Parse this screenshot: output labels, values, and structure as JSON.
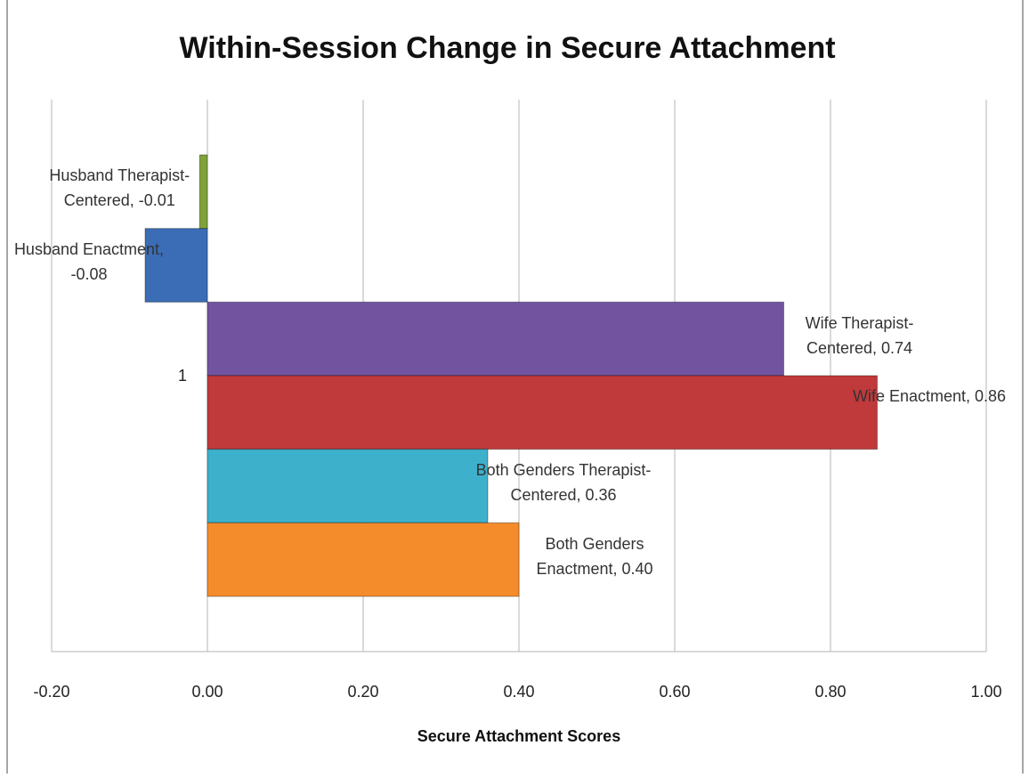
{
  "chart_data": {
    "type": "bar",
    "orientation": "horizontal",
    "title": "Within-Session Change in Secure Attachment",
    "xlabel": "Secure Attachment Scores",
    "categories": [
      "1"
    ],
    "series": [
      {
        "color": "#7fa23a",
        "values": [
          -0.01
        ],
        "value_labels": [
          "Husband Therapist-Centered, -0.01"
        ]
      },
      {
        "color": "#3a6db5",
        "values": [
          -0.08
        ],
        "value_labels": [
          "Husband Enactment, -0.08"
        ]
      },
      {
        "color": "#7253a0",
        "values": [
          0.74
        ],
        "value_labels": [
          "Wife Therapist-Centered, 0.74"
        ]
      },
      {
        "color": "#c0393b",
        "values": [
          0.86
        ],
        "value_labels": [
          "Wife Enactment, 0.86"
        ]
      },
      {
        "color": "#3db0cc",
        "values": [
          0.36
        ],
        "value_labels": [
          "Both Genders Therapist-Centered, 0.36"
        ]
      },
      {
        "color": "#f58c2b",
        "values": [
          0.4
        ],
        "value_labels": [
          "Both Genders Enactment, 0.40"
        ]
      }
    ],
    "xlim": [
      -0.2,
      1.0
    ],
    "xticks": [
      {
        "value": -0.2,
        "label": "-0.20"
      },
      {
        "value": 0,
        "label": "0.00"
      },
      {
        "value": 0.2,
        "label": "0.20"
      },
      {
        "value": 0.4,
        "label": "0.40"
      },
      {
        "value": 0.6,
        "label": "0.60"
      },
      {
        "value": 0.8,
        "label": "0.80"
      },
      {
        "value": 1.0,
        "label": "1.00"
      }
    ],
    "grid": true
  }
}
